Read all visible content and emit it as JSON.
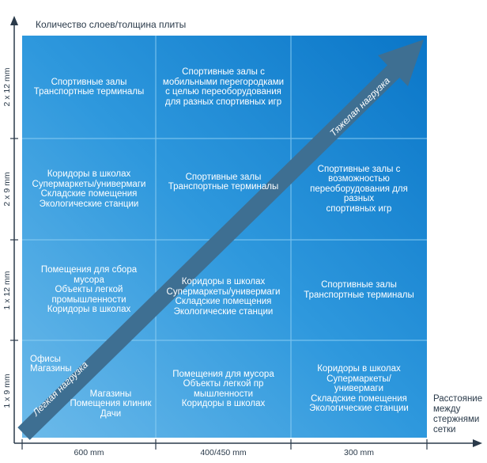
{
  "y_axis_title": "Количество слоев/толщина плиты",
  "x_axis_title": "Расстояние\nмежду\nстержнями\nсетки",
  "y_ticks": [
    "2 x 12 mm",
    "2 x 9 mm",
    "1 x 12 mm",
    "1 x 9 mm"
  ],
  "x_ticks": [
    "600 mm",
    "400/450 mm",
    "300 mm"
  ],
  "arrow": {
    "light": "Легкая нагрузка",
    "heavy": "Тяжелая нагрузка"
  },
  "colors": {
    "grid_light": "#55aee6",
    "grid_dark": "#0f7fd0",
    "arrow": "#3e6f92",
    "axis": "#2a3a4a"
  },
  "cells": {
    "r0c0": "Спортивные залы\nТранспортные терминалы",
    "r0c1": "Спортивные залы с\nмобильными перегородками\nс целью переоборудования\nдля разных спортивных игр",
    "r0c2": "",
    "r1c0": "Коридоры в школах\nСупермаркеты/универмаги\nСкладские помещения\nЭкологические станции",
    "r1c1": "Спортивные залы\nТранспортные терминалы",
    "r1c2": "Спортивные залы с\nвозможностью\nпереоборудования для\nразных\nспортивных игр",
    "r2c0": "Помещения для сбора\nмусора\nОбъекты легкой\nпромышленности\nКоридоры в школах",
    "r2c1": "Коридоры в школах\nСупермаркеты/универмаги\nСкладские помещения\nЭкологические станции",
    "r2c2": "Спортивные залы\nТранспортные терминалы",
    "r3c0_a": "Офисы\nМагазины",
    "r3c0_b": "Магазины\nПомещения клиник\nДачи",
    "r3c1": "Помещения для мусора\nОбъекты легкой пр\nмышленности\nКоридоры в школах",
    "r3c2": "Коридоры в школах\nСупермаркеты/\nунивермаги\nСкладские помещения\nЭкологические станции"
  }
}
